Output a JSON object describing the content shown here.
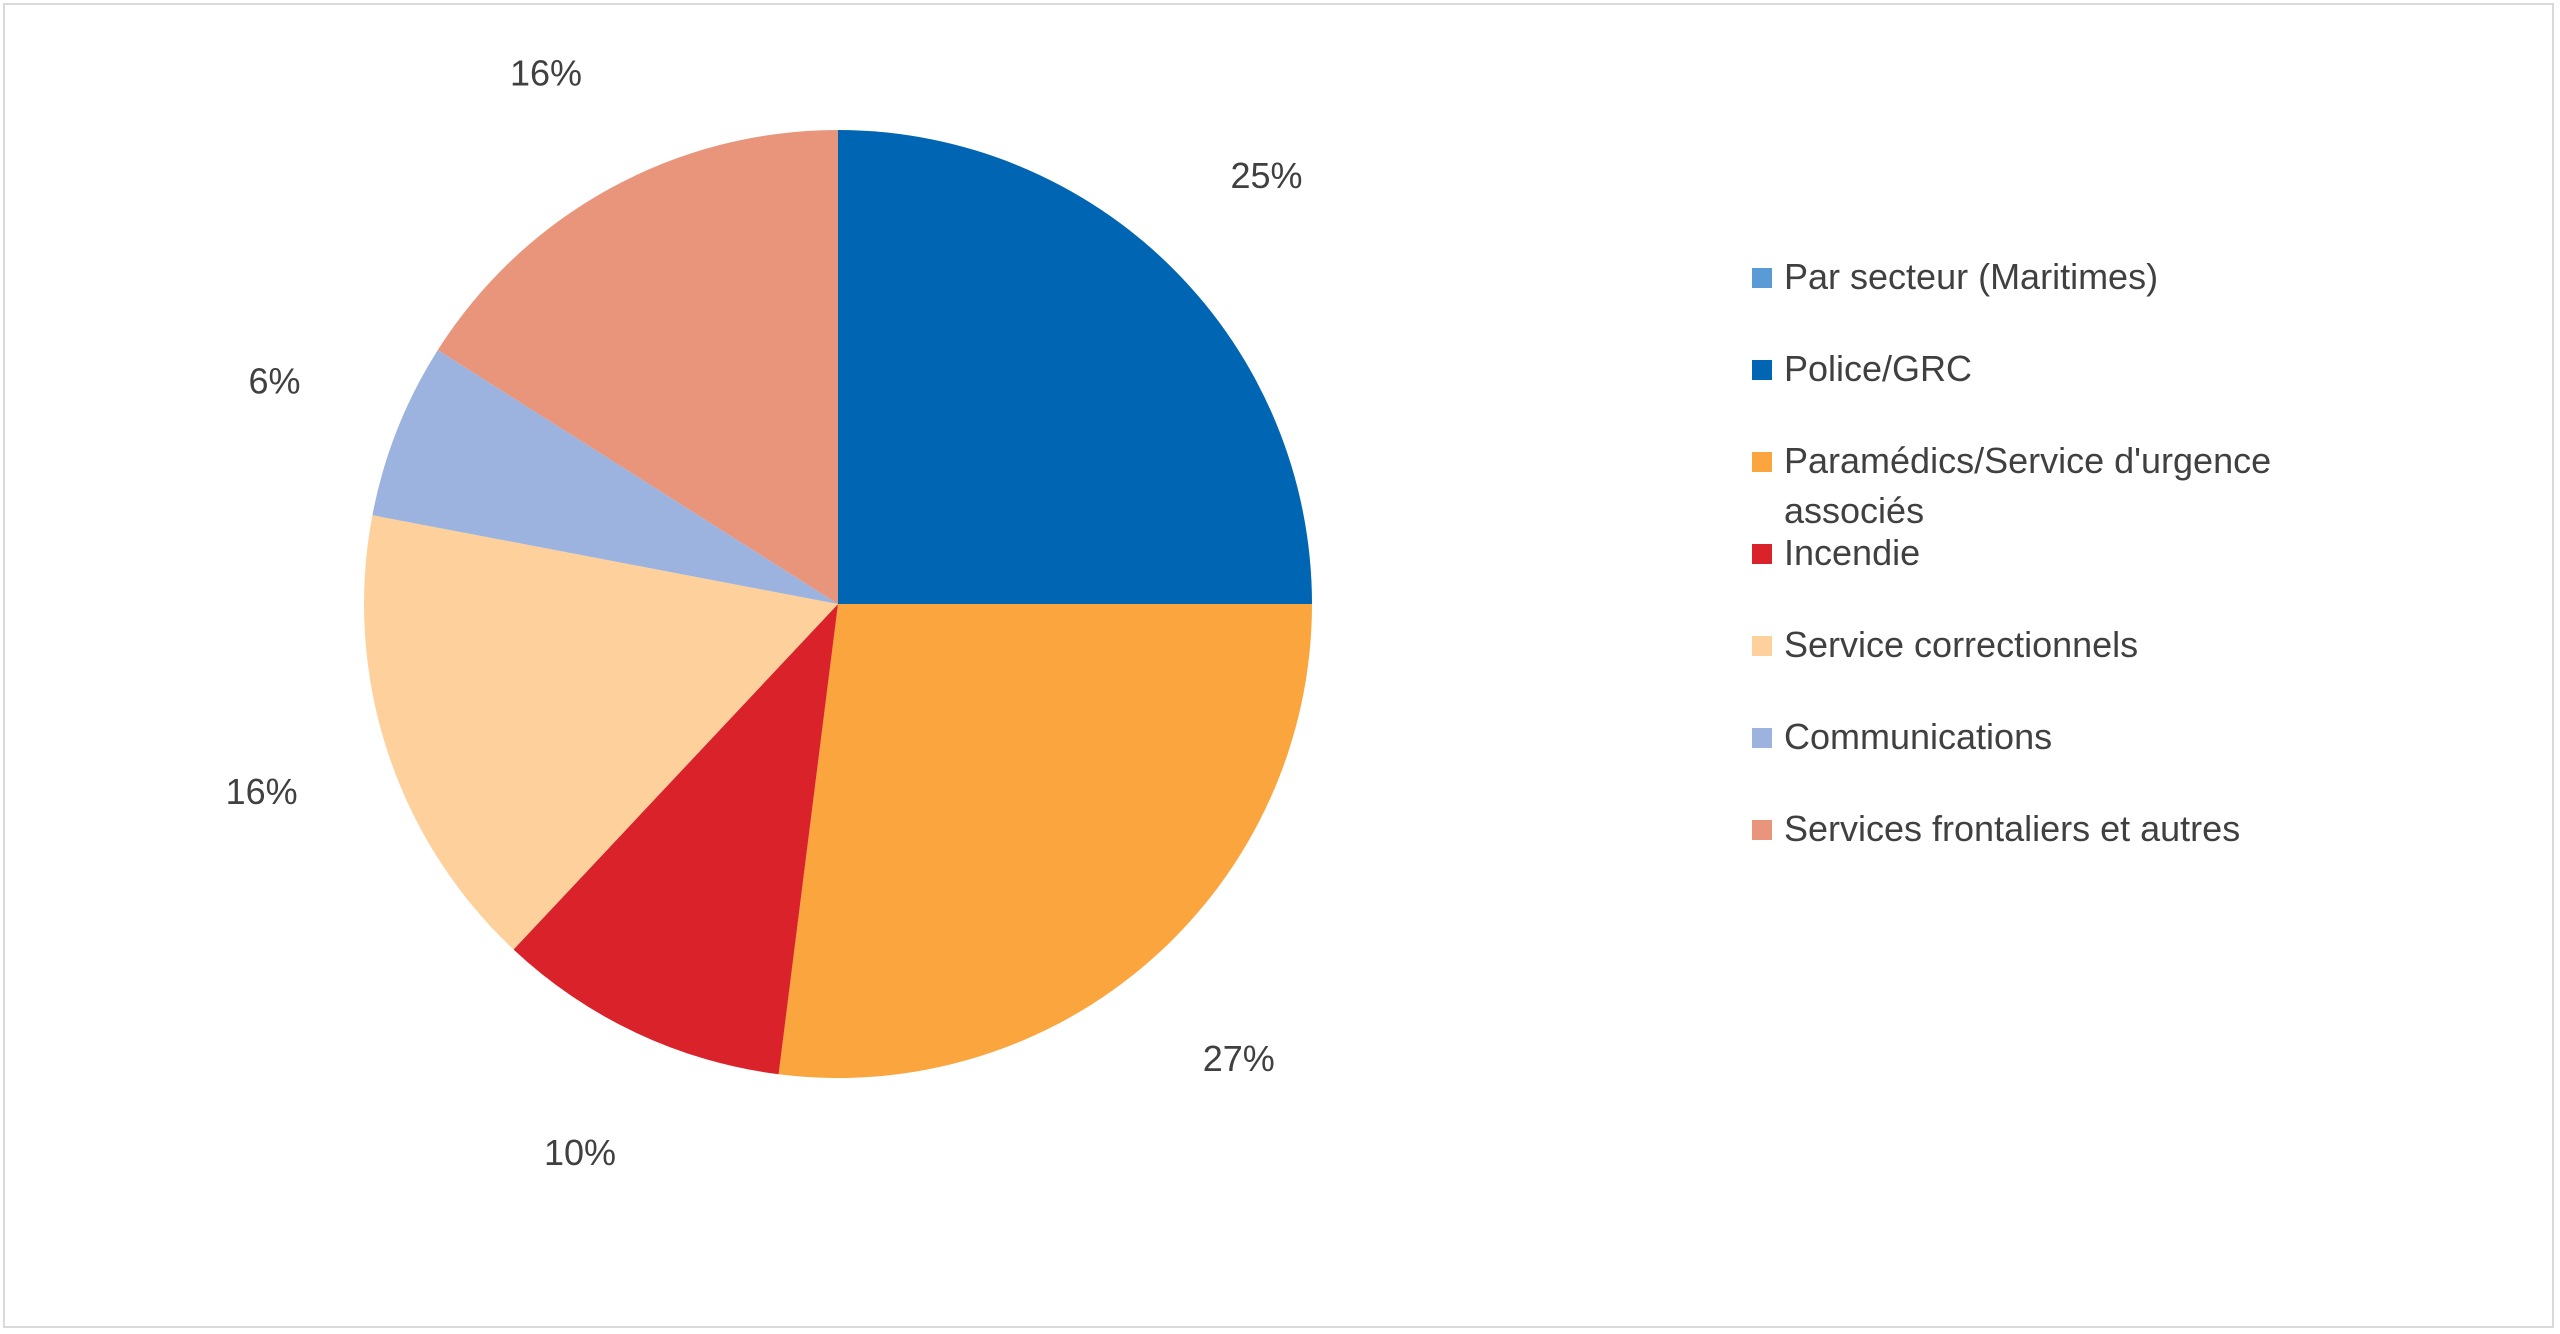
{
  "chart_data": {
    "type": "pie",
    "title": "",
    "legend_position": "right",
    "slices": [
      {
        "label": "Par secteur (Maritimes)",
        "value": 0,
        "display": "",
        "color": "#5b9bd5"
      },
      {
        "label": "Police/GRC",
        "value": 25,
        "display": "25%",
        "color": "#0066b3"
      },
      {
        "label": "Paramédics/Service d'urgence associés",
        "value": 27,
        "display": "27%",
        "color": "#faa53d"
      },
      {
        "label": "Incendie",
        "value": 10,
        "display": "10%",
        "color": "#d9222a"
      },
      {
        "label": "Service correctionnels",
        "value": 16,
        "display": "16%",
        "color": "#fdd09c"
      },
      {
        "label": "Communications",
        "value": 6,
        "display": "6%",
        "color": "#9bb3de"
      },
      {
        "label": "Services frontaliers et autres",
        "value": 16,
        "display": "16%",
        "color": "#e8957b"
      }
    ]
  }
}
